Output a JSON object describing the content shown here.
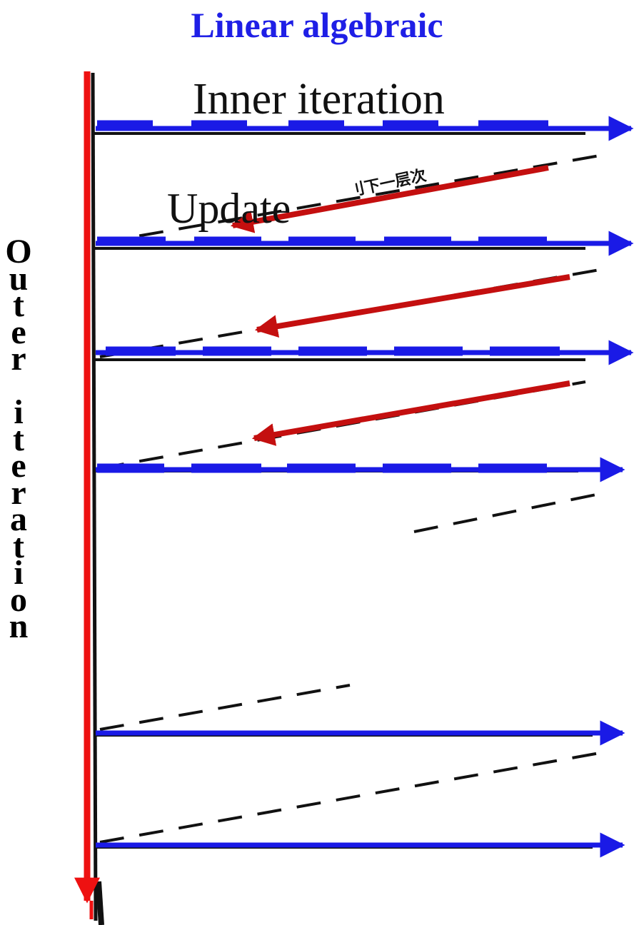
{
  "title": "Linear algebraic",
  "inner_label": "Inner iteration",
  "update_label": "Update",
  "cn_label": "刂下一层次",
  "outer_label": "Outer iteration",
  "colors": {
    "title": "#1f1fe6",
    "inner_arrow": "#1a1ae6",
    "outer_arrow": "#ee1111",
    "update_arrow": "#c40f0f",
    "scan_line": "#111111"
  }
}
